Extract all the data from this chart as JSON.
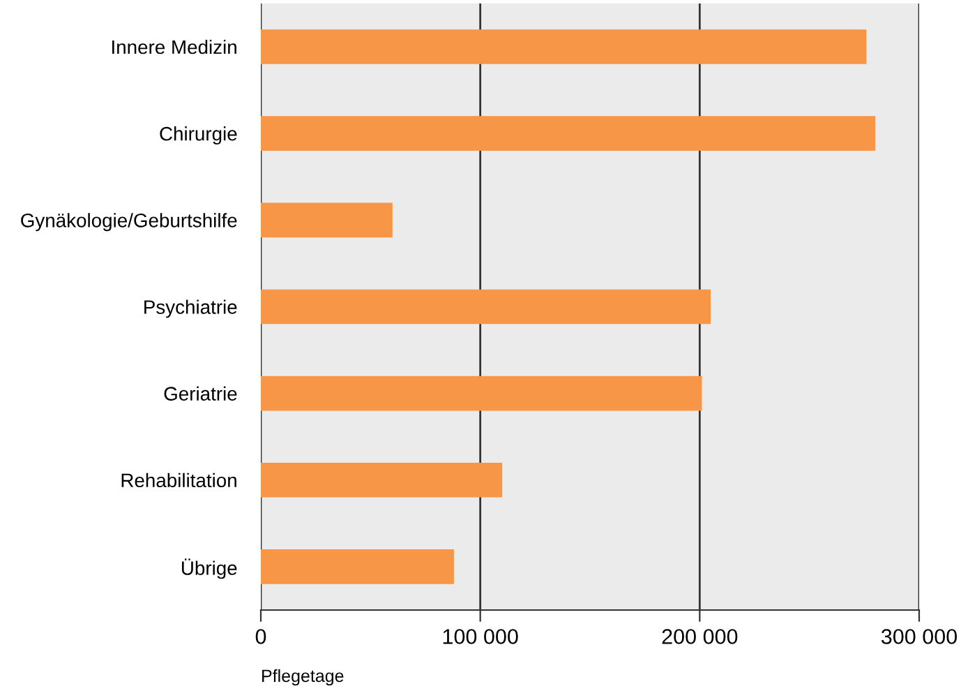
{
  "chart_data": {
    "type": "bar",
    "orientation": "horizontal",
    "xlabel": "Pflegetage",
    "categories": [
      "Innere Medizin",
      "Chirurgie",
      "Gynäkologie/Geburtshilfe",
      "Psychiatrie",
      "Geriatrie",
      "Rehabilitation",
      "Übrige"
    ],
    "values": [
      276000,
      280000,
      60000,
      205000,
      201000,
      110000,
      88000
    ],
    "color": "#f79646",
    "xlim": [
      0,
      300000
    ],
    "xticks": [
      {
        "value": 0,
        "label": "0"
      },
      {
        "value": 100000,
        "label": "100 000"
      },
      {
        "value": 200000,
        "label": "200 000"
      },
      {
        "value": 300000,
        "label": "300 000"
      }
    ],
    "grid": "x"
  }
}
